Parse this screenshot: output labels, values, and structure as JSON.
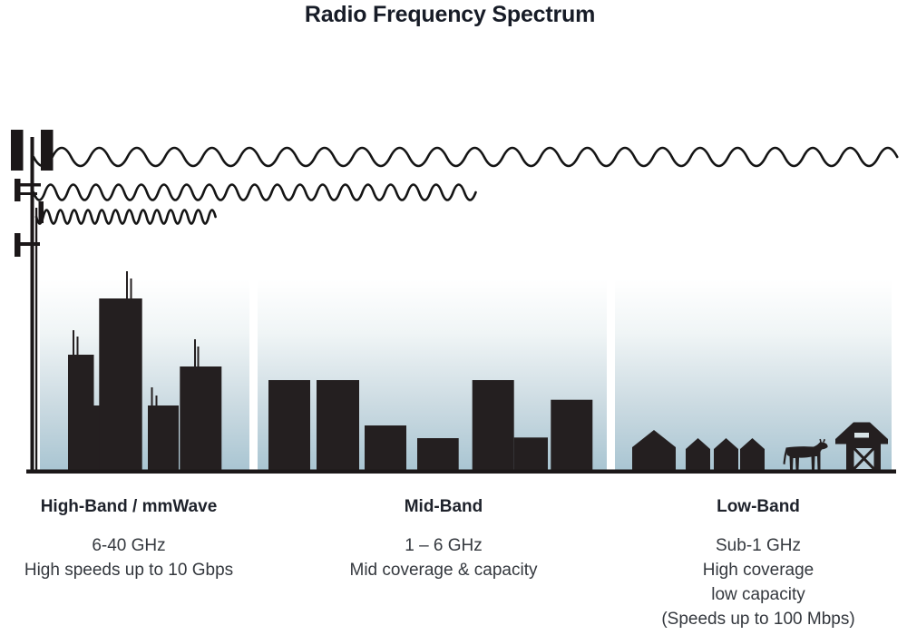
{
  "title": "Radio Frequency Spectrum",
  "colors": {
    "ink": "#231f20",
    "sky_top": "#ffffff",
    "sky_bottom": "#a9c5d2",
    "heading_text": "#1e222b",
    "body_text": "#34383e"
  },
  "bands": [
    {
      "name": "High-Band / mmWave",
      "lines": [
        "6-40 GHz",
        "High speeds up to 10 Gbps"
      ]
    },
    {
      "name": "Mid-Band",
      "lines": [
        "1 – 6 GHz",
        "Mid coverage & capacity"
      ]
    },
    {
      "name": "Low-Band",
      "lines": [
        "Sub-1 GHz",
        "High coverage",
        "low capacity",
        "(Speeds up to 100 Mbps)"
      ]
    }
  ],
  "illustration": {
    "icons": [
      "cell-tower-icon",
      "long-wavelength-wave",
      "medium-wavelength-wave",
      "short-wavelength-wave",
      "skyscraper-skyline",
      "midrise-skyline",
      "house-icon",
      "cow-icon",
      "barn-icon"
    ]
  }
}
